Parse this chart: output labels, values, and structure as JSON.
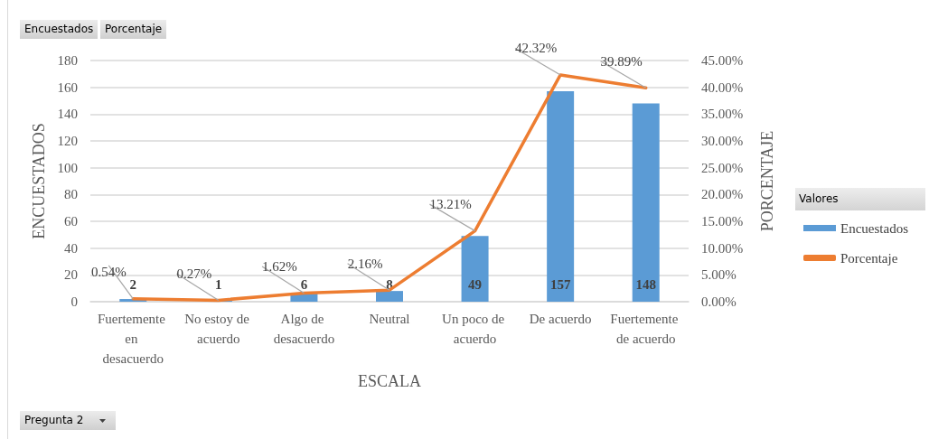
{
  "chart_data": {
    "type": "bar",
    "categories": [
      "Fuertemente en desacuerdo",
      "No estoy de acuerdo",
      "Algo de desacuerdo",
      "Neutral",
      "Un poco de acuerdo",
      "De acuerdo",
      "Fuertemente de acuerdo"
    ],
    "xlabel": "ESCALA",
    "ylabel": "ENCUESTADOS",
    "y2label": "PORCENTAJE",
    "legend_title": "Valores",
    "legend": "right",
    "grid": "y",
    "ylim": [
      0,
      180
    ],
    "yticks": [
      0,
      20,
      40,
      60,
      80,
      100,
      120,
      140,
      160,
      180
    ],
    "y2lim": [
      0,
      45
    ],
    "y2ticks": [
      {
        "value": 0,
        "label": "0.00%"
      },
      {
        "value": 5,
        "label": "5.00%"
      },
      {
        "value": 10,
        "label": "10.00%"
      },
      {
        "value": 15,
        "label": "15.00%"
      },
      {
        "value": 20,
        "label": "20.00%"
      },
      {
        "value": 25,
        "label": "25.00%"
      },
      {
        "value": 30,
        "label": "30.00%"
      },
      {
        "value": 35,
        "label": "35.00%"
      },
      {
        "value": 40,
        "label": "40.00%"
      },
      {
        "value": 45,
        "label": "45.00%"
      }
    ],
    "series": [
      {
        "name": "Encuestados",
        "color": "#5b9bd5",
        "values": [
          2,
          1,
          6,
          8,
          49,
          157,
          148
        ],
        "value_labels": [
          "2",
          "1",
          "6",
          "8",
          "49",
          "157",
          "148"
        ]
      },
      {
        "name": "Porcentaje",
        "type": "line",
        "axis": "y2",
        "color": "#ed7d31",
        "marker": "none",
        "values": [
          0.54,
          0.27,
          1.62,
          2.16,
          13.21,
          42.32,
          39.89
        ],
        "value_labels": [
          "0.54%",
          "0.27%",
          "1.62%",
          "2.16%",
          "13.21%",
          "42.32%",
          "39.89%"
        ]
      }
    ],
    "annotations": [
      "Encuestados",
      "Porcentaje",
      "Pregunta 2"
    ]
  }
}
